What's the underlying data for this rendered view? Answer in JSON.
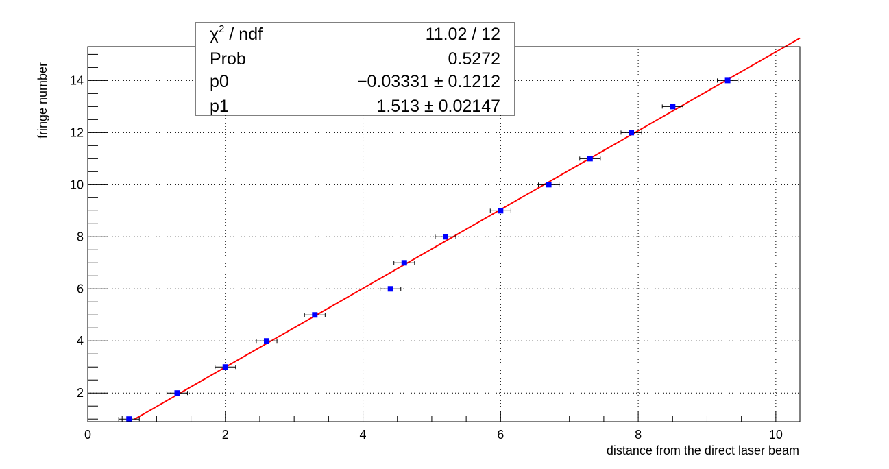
{
  "chart_data": {
    "type": "scatter",
    "title": "",
    "xlabel": "distance from the direct laser beam",
    "ylabel": "fringe number",
    "xlim": [
      0,
      10.35
    ],
    "ylim": [
      0.9,
      15.3
    ],
    "grid": true,
    "x_ticks": [
      "0",
      "2",
      "4",
      "6",
      "8",
      "10"
    ],
    "y_ticks": [
      "2",
      "4",
      "6",
      "8",
      "10",
      "12",
      "14"
    ],
    "series": [
      {
        "type": "scatter",
        "color": "#0000ff",
        "x": [
          0.6,
          1.3,
          2.0,
          2.6,
          3.3,
          4.4,
          4.6,
          5.2,
          6.0,
          6.7,
          7.3,
          7.9,
          8.5,
          9.3
        ],
        "y": [
          1,
          2,
          3,
          4,
          5,
          6,
          7,
          8,
          9,
          10,
          11,
          12,
          13,
          14
        ],
        "x_err": [
          0.15,
          0.15,
          0.15,
          0.15,
          0.15,
          0.15,
          0.15,
          0.15,
          0.15,
          0.15,
          0.15,
          0.15,
          0.15,
          0.15
        ]
      },
      {
        "type": "line",
        "color": "#ff0000",
        "fit": {
          "p0": -0.03331,
          "p1": 1.513
        },
        "x_range": [
          0.68,
          10.35
        ]
      }
    ],
    "stats_box": {
      "rows": [
        {
          "label": "χ² / ndf",
          "value": "11.02 / 12"
        },
        {
          "label": "Prob",
          "value": "0.5272"
        },
        {
          "label": "p0",
          "value": "−0.03331 ± 0.1212"
        },
        {
          "label": "p1",
          "value": "1.513 ± 0.02147"
        }
      ]
    }
  }
}
